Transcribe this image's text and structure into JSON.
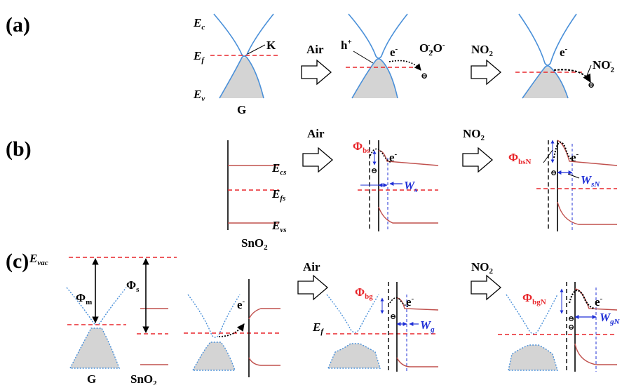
{
  "panels": {
    "a": "(a)",
    "b": "(b)",
    "c": "(c)"
  },
  "labels": {
    "ec": "E",
    "ec_sub": "c",
    "ef": "E",
    "ef_sub": "f",
    "ev": "E",
    "ev_sub": "v",
    "k": "K",
    "g": "G",
    "air": "Air",
    "no2": "NO",
    "no2_sub": "2",
    "hplus": "h",
    "hplus_sup": "+",
    "eminus": "e",
    "eminus_sup": "-",
    "o2": "O",
    "o2_sub": "2",
    "o2_sup": "-",
    "o_minus": ",O",
    "o_minus_sup": "-",
    "no2_ion": "NO",
    "no2_ion_sub": "2",
    "no2_ion_sup": "-",
    "minus_circle": "⊖",
    "ecs": "E",
    "ecs_sub": "cs",
    "efs": "E",
    "efs_sub": "fs",
    "evs": "E",
    "evs_sub": "vs",
    "sno2": "SnO",
    "sno2_sub": "2",
    "phi": "Φ",
    "phi_bs_sub": "bs",
    "phi_bsn_sub": "bsN",
    "w": "W",
    "ws_sub": "s",
    "wsn_sub": "sN",
    "evac": "E",
    "evac_sub": "vac",
    "phi_m_sub": "m",
    "phi_s_sub": "s",
    "phi_bg_sub": "bg",
    "phi_bgn_sub": "bgN",
    "wg_sub": "g",
    "wgn_sub": "gN"
  },
  "colors": {
    "graphene_band": "#4a90d9",
    "fermi_dashed": "#e8262b",
    "sno2_band": "#c0504d",
    "filled_band": "#d4d4d4",
    "barrier_label": "#e8262b",
    "width_label": "#1f2fd6"
  }
}
